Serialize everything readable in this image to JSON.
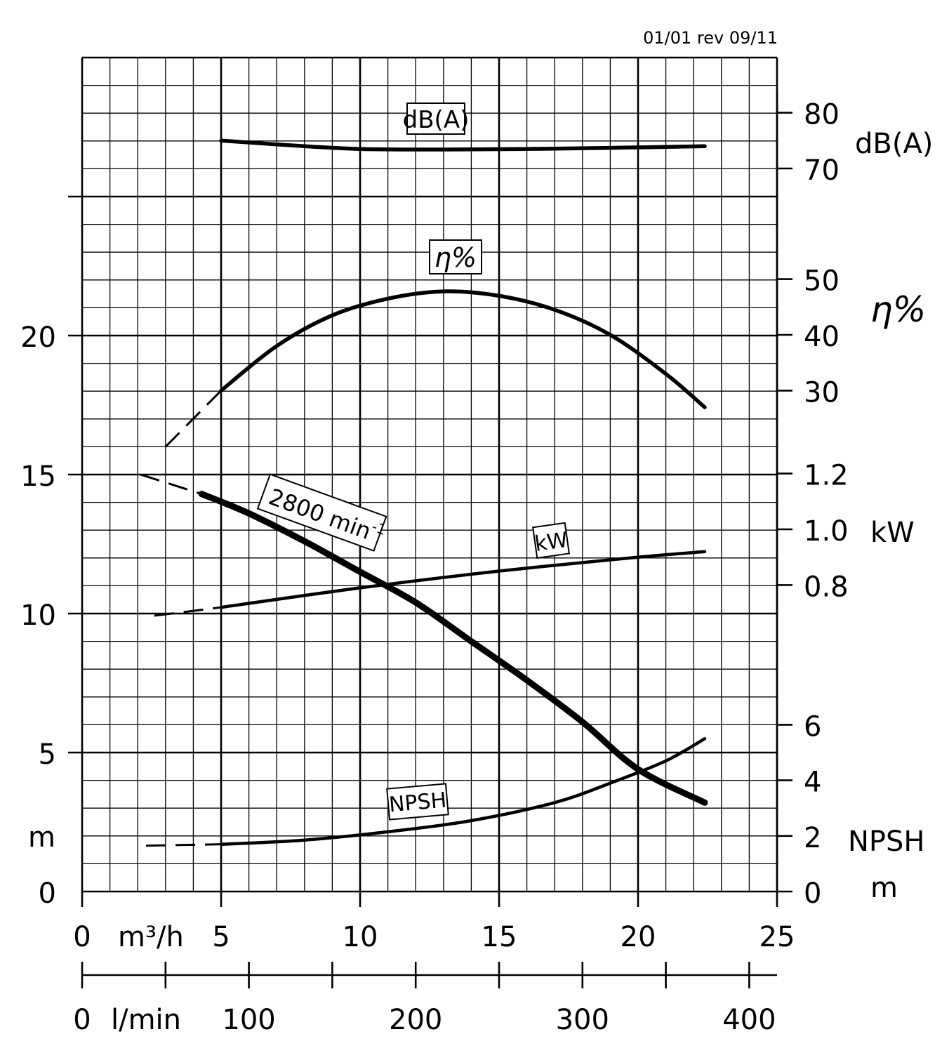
{
  "revision": "01/01 rev 09/11",
  "chart_data": {
    "type": "line",
    "title": "",
    "x_axis": {
      "unit": "m³/h",
      "range": [
        0,
        25
      ],
      "ticks": [
        0,
        5,
        10,
        15,
        20,
        25
      ]
    },
    "x_axis_secondary": {
      "unit": "l/min",
      "range": [
        0,
        416.67
      ],
      "ticks": [
        0,
        100,
        200,
        300,
        400
      ]
    },
    "head_axis": {
      "unit": "m",
      "range": [
        0,
        30
      ],
      "ticks": [
        0,
        5,
        10,
        15,
        20
      ]
    },
    "db_axis": {
      "unit": "dB(A)",
      "ticks": [
        70,
        80
      ]
    },
    "eff_axis": {
      "unit": "η%",
      "ticks": [
        30,
        40,
        50
      ]
    },
    "power_axis": {
      "unit": "kW",
      "ticks": [
        0.8,
        1.0,
        1.2
      ]
    },
    "npsh_axis": {
      "unit": "NPSH",
      "unit2": "m",
      "ticks": [
        0,
        2,
        4,
        6
      ]
    },
    "curve_labels": {
      "db": "dB(A)",
      "efficiency": "η%",
      "head_prefix": "2800 min",
      "head_sup": "-1",
      "power": "kW",
      "npsh": "NPSH"
    },
    "series": [
      {
        "key": "head",
        "axis": "m",
        "x": [
          4.3,
          6,
          8,
          10,
          12,
          14,
          16,
          18,
          20,
          22.4
        ],
        "y": [
          14.3,
          13.6,
          12.6,
          11.5,
          10.4,
          9.0,
          7.6,
          6.1,
          4.4,
          3.2
        ],
        "extension_x": [
          2.1,
          4.3
        ],
        "extension_y": [
          15.0,
          14.3
        ]
      },
      {
        "key": "efficiency",
        "axis": "%",
        "x": [
          5,
          7,
          9,
          11,
          13,
          15,
          17,
          19,
          21,
          22.4
        ],
        "y": [
          30.0,
          38.0,
          43.5,
          46.5,
          47.8,
          47.0,
          44.5,
          40.0,
          33.0,
          27.0
        ],
        "extension_x": [
          3.0,
          5.0
        ],
        "extension_y": [
          16.0,
          30.0
        ]
      },
      {
        "key": "power",
        "axis": "kW",
        "x": [
          5,
          10,
          15,
          20,
          22.4
        ],
        "y": [
          0.72,
          0.79,
          0.85,
          0.9,
          0.92
        ],
        "extension_x": [
          2.6,
          5.0
        ],
        "extension_y": [
          0.69,
          0.72
        ]
      },
      {
        "key": "npsh",
        "axis": "m",
        "x": [
          5,
          8,
          11,
          14,
          17,
          19,
          21,
          22.4
        ],
        "y": [
          1.7,
          1.85,
          2.15,
          2.55,
          3.2,
          3.9,
          4.7,
          5.5
        ],
        "extension_x": [
          2.3,
          5.0
        ],
        "extension_y": [
          1.65,
          1.7
        ]
      },
      {
        "key": "noise",
        "axis": "dB(A)",
        "x": [
          5,
          8,
          10,
          13,
          16,
          19,
          22.4
        ],
        "y": [
          75.0,
          74.0,
          73.5,
          73.4,
          73.5,
          73.7,
          74.0
        ]
      }
    ],
    "grid": true,
    "legend": "inline-boxed-labels"
  }
}
